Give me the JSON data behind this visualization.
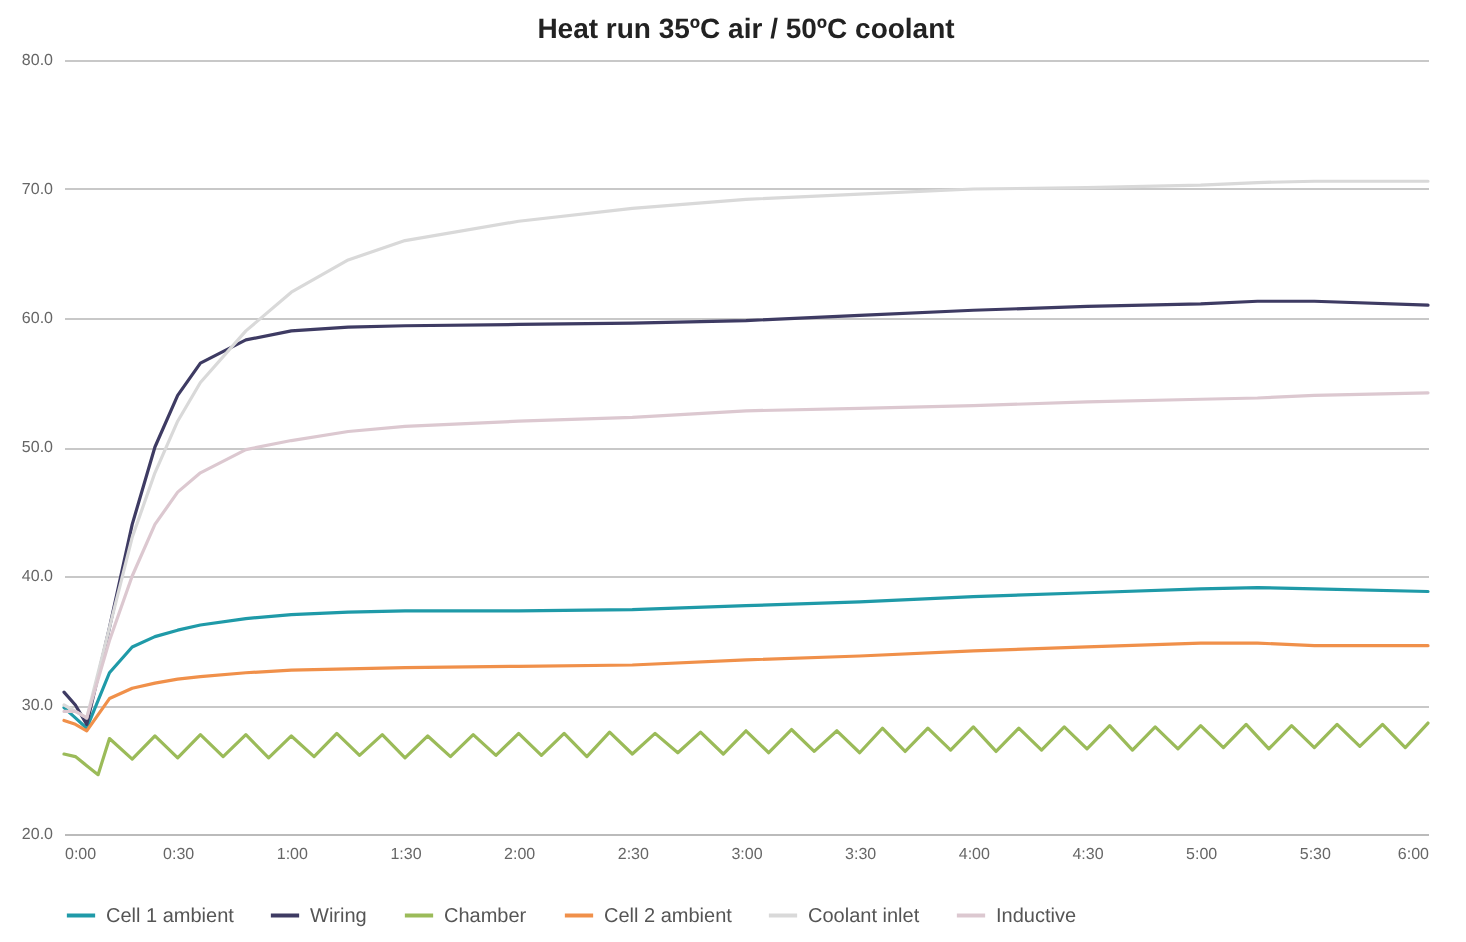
{
  "chart_data": {
    "type": "line",
    "title": "Heat run 35ºC air / 50ºC coolant",
    "x": [
      0,
      0.05,
      0.1,
      0.2,
      0.3,
      0.4,
      0.5,
      0.6,
      0.8,
      1.0,
      1.25,
      1.5,
      2,
      2.5,
      3,
      3.5,
      4,
      4.5,
      5,
      5.25,
      5.5,
      6
    ],
    "series": [
      {
        "name": "Cell 1 ambient",
        "color": "#1f9aa8",
        "values": [
          29.8,
          29.0,
          28.2,
          32.5,
          34.5,
          35.3,
          35.8,
          36.2,
          36.7,
          37.0,
          37.2,
          37.3,
          37.3,
          37.4,
          37.7,
          38.0,
          38.4,
          38.7,
          39.0,
          39.1,
          39.0,
          38.8
        ]
      },
      {
        "name": "Wiring",
        "color": "#3e3b63",
        "values": [
          31.0,
          30.0,
          28.5,
          36,
          44,
          50,
          54,
          56.5,
          58.3,
          59.0,
          59.3,
          59.4,
          59.5,
          59.6,
          59.8,
          60.2,
          60.6,
          60.9,
          61.1,
          61.3,
          61.3,
          61.0
        ]
      },
      {
        "name": "Chamber",
        "color": "#9bbb59",
        "x": [
          0,
          0.05,
          0.1,
          0.15,
          0.2,
          0.3,
          0.4,
          0.5,
          0.6,
          0.7,
          0.8,
          0.9,
          1.0,
          1.1,
          1.2,
          1.3,
          1.4,
          1.5,
          1.6,
          1.7,
          1.8,
          1.9,
          2.0,
          2.1,
          2.2,
          2.3,
          2.4,
          2.5,
          2.6,
          2.7,
          2.8,
          2.9,
          3.0,
          3.1,
          3.2,
          3.3,
          3.4,
          3.5,
          3.6,
          3.7,
          3.8,
          3.9,
          4.0,
          4.1,
          4.2,
          4.3,
          4.4,
          4.5,
          4.6,
          4.7,
          4.8,
          4.9,
          5.0,
          5.1,
          5.2,
          5.3,
          5.4,
          5.5,
          5.6,
          5.7,
          5.8,
          5.9,
          6.0
        ],
        "values": [
          26.2,
          26.0,
          25.3,
          24.6,
          27.4,
          25.8,
          27.6,
          25.9,
          27.7,
          26.0,
          27.7,
          25.9,
          27.6,
          26.0,
          27.8,
          26.1,
          27.7,
          25.9,
          27.6,
          26.0,
          27.7,
          26.1,
          27.8,
          26.1,
          27.8,
          26.0,
          27.9,
          26.2,
          27.8,
          26.3,
          27.9,
          26.2,
          28.0,
          26.3,
          28.1,
          26.4,
          28.0,
          26.3,
          28.2,
          26.4,
          28.2,
          26.5,
          28.3,
          26.4,
          28.2,
          26.5,
          28.3,
          26.6,
          28.4,
          26.5,
          28.3,
          26.6,
          28.4,
          26.7,
          28.5,
          26.6,
          28.4,
          26.7,
          28.5,
          26.8,
          28.5,
          26.7,
          28.6
        ]
      },
      {
        "name": "Cell 2 ambient",
        "color": "#f0904a",
        "values": [
          28.8,
          28.5,
          28.0,
          30.5,
          31.3,
          31.7,
          32.0,
          32.2,
          32.5,
          32.7,
          32.8,
          32.9,
          33.0,
          33.1,
          33.5,
          33.8,
          34.2,
          34.5,
          34.8,
          34.8,
          34.6,
          34.6
        ]
      },
      {
        "name": "Coolant inlet",
        "color": "#d9d9d9",
        "values": [
          30.0,
          29.5,
          29.0,
          36,
          43,
          48,
          52,
          55,
          59,
          62,
          64.5,
          66,
          67.5,
          68.5,
          69.2,
          69.6,
          70.0,
          70.1,
          70.3,
          70.5,
          70.6,
          70.6
        ]
      },
      {
        "name": "Inductive",
        "color": "#dcc8d0",
        "values": [
          29.5,
          29.5,
          29.0,
          35,
          40,
          44,
          46.5,
          48,
          49.8,
          50.5,
          51.2,
          51.6,
          52.0,
          52.3,
          52.8,
          53.0,
          53.2,
          53.5,
          53.7,
          53.8,
          54.0,
          54.2
        ]
      }
    ],
    "xlim": [
      0,
      6
    ],
    "xticks": [
      {
        "value": 0,
        "label": "0:00"
      },
      {
        "value": 0.5,
        "label": "0:30"
      },
      {
        "value": 1,
        "label": "1:00"
      },
      {
        "value": 1.5,
        "label": "1:30"
      },
      {
        "value": 2,
        "label": "2:00"
      },
      {
        "value": 2.5,
        "label": "2:30"
      },
      {
        "value": 3,
        "label": "3:00"
      },
      {
        "value": 3.5,
        "label": "3:30"
      },
      {
        "value": 4,
        "label": "4:00"
      },
      {
        "value": 4.5,
        "label": "4:30"
      },
      {
        "value": 5,
        "label": "5:00"
      },
      {
        "value": 5.5,
        "label": "5:30"
      },
      {
        "value": 6,
        "label": "6:00"
      }
    ],
    "ylim": [
      20,
      80
    ],
    "yticks": [
      {
        "value": 20,
        "label": "20.0"
      },
      {
        "value": 30,
        "label": "30.0"
      },
      {
        "value": 40,
        "label": "40.0"
      },
      {
        "value": 50,
        "label": "50.0"
      },
      {
        "value": 60,
        "label": "60.0"
      },
      {
        "value": 70,
        "label": "70.0"
      },
      {
        "value": 80,
        "label": "80.0"
      }
    ],
    "grid": "y",
    "legend": "bottom",
    "marker": "none",
    "line_style": "solid"
  }
}
